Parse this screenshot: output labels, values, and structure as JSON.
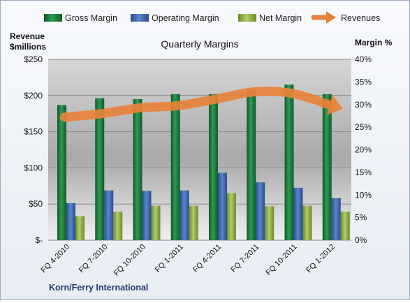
{
  "chart_data": {
    "type": "bar",
    "title": "Quarterly Margins",
    "company": "Korn/Ferry International",
    "left_axis_label_line1": "Revenue",
    "left_axis_label_line2": "$millions",
    "right_axis_label": "Margin %",
    "categories": [
      "FQ 4-2010",
      "FQ 7-2010",
      "FQ 10-2010",
      "FQ 1-2011",
      "FQ 4-2011",
      "FQ 7-2011",
      "FQ 10-2011",
      "FQ 1-2012"
    ],
    "left_ticks": [
      "$-",
      "$50",
      "$100",
      "$150",
      "$200",
      "$250"
    ],
    "right_ticks": [
      "0%",
      "5%",
      "10%",
      "15%",
      "20%",
      "25%",
      "30%",
      "35%",
      "40%"
    ],
    "ylim_left": [
      0,
      250
    ],
    "ylim_right": [
      0,
      40
    ],
    "legend_position": "top",
    "series": [
      {
        "name": "Gross Margin",
        "axis": "right",
        "unit": "%",
        "values": [
          29.9,
          31.4,
          31.2,
          32.3,
          32.3,
          33.4,
          34.4,
          32.3
        ]
      },
      {
        "name": "Operating Margin",
        "axis": "right",
        "unit": "%",
        "values": [
          8.2,
          11.0,
          10.9,
          11.0,
          14.9,
          12.8,
          11.6,
          9.3
        ]
      },
      {
        "name": "Net Margin",
        "axis": "right",
        "unit": "%",
        "values": [
          5.3,
          6.3,
          7.6,
          7.6,
          10.4,
          7.5,
          7.6,
          6.3
        ]
      },
      {
        "name": "Revenues",
        "axis": "left",
        "unit": "$millions",
        "values": [
          170,
          175,
          183,
          186,
          195,
          205,
          203,
          187
        ]
      }
    ],
    "colors": {
      "gross": "#1f7a3c",
      "operating": "#3e66ad",
      "net": "#8fae3f",
      "revenue": "#e8823a"
    }
  }
}
